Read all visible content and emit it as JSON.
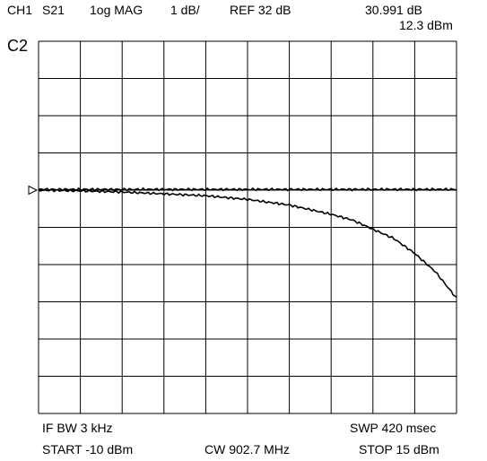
{
  "header": {
    "channel": "CH1",
    "param": "S21",
    "format": "1og MAG",
    "scale": "1 dB/",
    "reference": "REF 32 dB",
    "marker_value": "30.991 dB",
    "marker_power": "12.3 dBm"
  },
  "channel_label": "C2",
  "footer": {
    "if_bw": "IF  BW  3  kHz",
    "sweep_time": "SWP  420  msec",
    "start": "START  -10 dBm",
    "cw": "CW 902.7 MHz",
    "stop": "STOP 15 dBm"
  },
  "chart_data": {
    "type": "line",
    "x_unit": "dBm",
    "xlim": [
      -10,
      15
    ],
    "y_unit": "dB",
    "ylim": [
      26,
      36
    ],
    "y_divisions": 10,
    "x_divisions": 10,
    "reference_level": 32,
    "reference_marker": "left",
    "grid": true,
    "series": [
      {
        "x": [
          -10,
          -5,
          0,
          2.5,
          5,
          7.5,
          10,
          11.25,
          12.5,
          13.75,
          15
        ],
        "y": [
          32.02,
          32.02,
          32.02,
          32.02,
          32.02,
          32.02,
          32.02,
          32.02,
          32.02,
          32.02,
          32.02
        ]
      },
      {
        "x": [
          -10,
          -7.5,
          -5,
          -2.5,
          0,
          2.5,
          5,
          7.5,
          8.75,
          10,
          11.25,
          12.5,
          13.75,
          15
        ],
        "y": [
          32.0,
          31.98,
          31.95,
          31.9,
          31.85,
          31.75,
          31.6,
          31.35,
          31.2,
          30.95,
          30.7,
          30.3,
          29.8,
          29.1
        ]
      }
    ],
    "line_color": "#000000",
    "grid_color": "#000000"
  }
}
